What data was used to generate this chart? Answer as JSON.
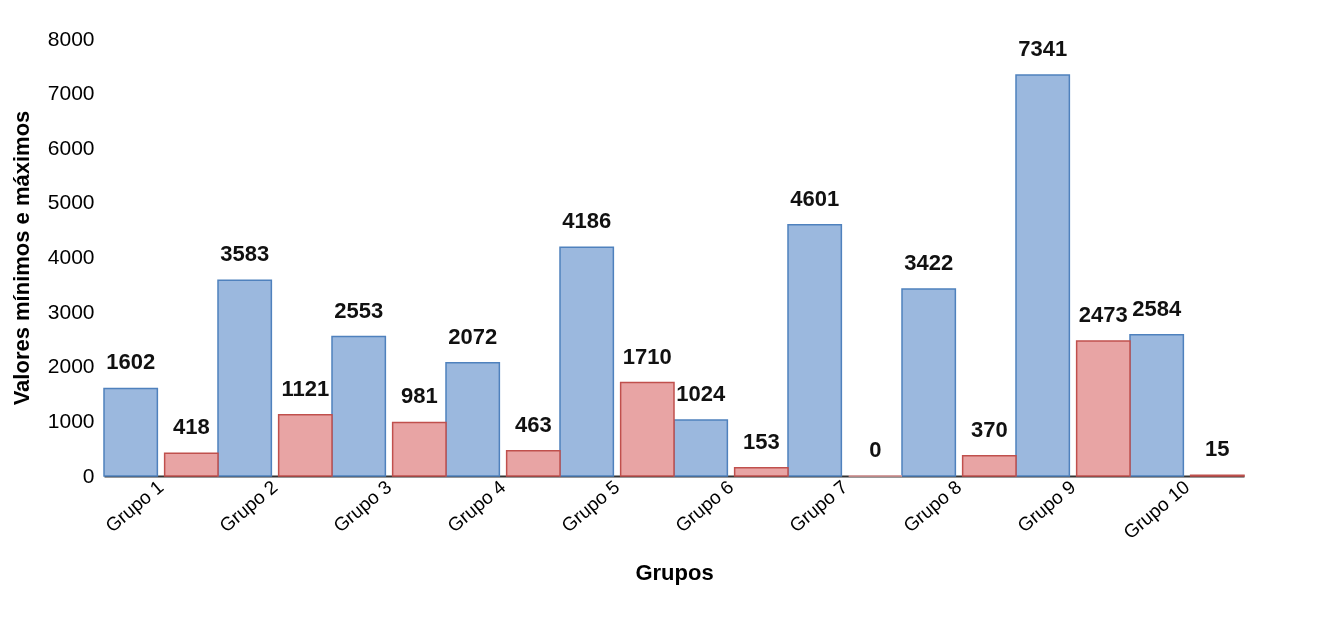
{
  "chart_data": {
    "type": "bar",
    "xlabel": "Grupos",
    "ylabel": "Valores mínimos e máximos",
    "categories": [
      "Grupo 1",
      "Grupo 2",
      "Grupo 3",
      "Grupo 4",
      "Grupo 5",
      "Grupo 6",
      "Grupo 7",
      "Grupo 8",
      "Grupo 9",
      "Grupo 10"
    ],
    "series": [
      {
        "color": "#9bb8de",
        "values": [
          1602,
          3583,
          2553,
          2072,
          4186,
          1024,
          4601,
          3422,
          7341,
          2584
        ]
      },
      {
        "color": "#e8a4a4",
        "values": [
          418,
          1121,
          981,
          463,
          1710,
          153,
          0,
          370,
          2473,
          15
        ]
      }
    ],
    "ylim": [
      0,
      8000
    ],
    "yticks": [
      0,
      1000,
      2000,
      3000,
      4000,
      5000,
      6000,
      7000,
      8000
    ],
    "grid": false,
    "legend": false,
    "data_labels": true
  }
}
